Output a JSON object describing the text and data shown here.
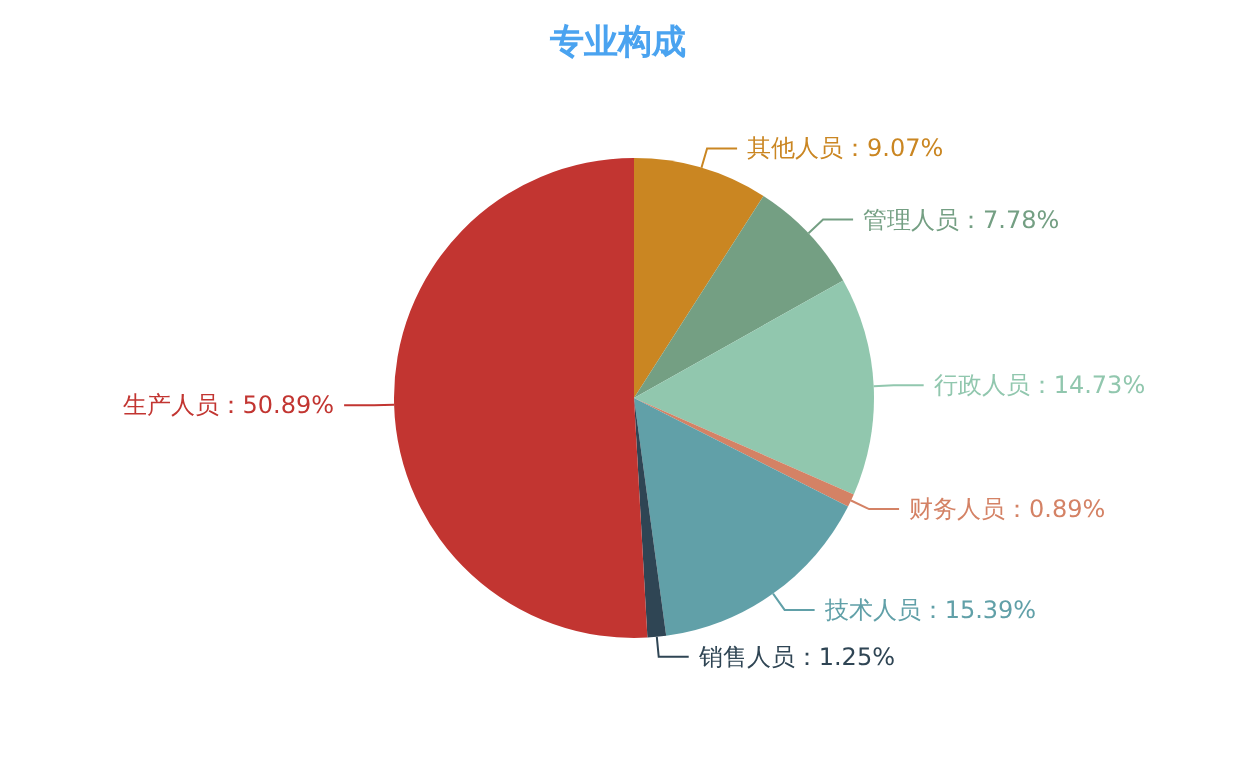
{
  "chart_data": {
    "type": "pie",
    "title": "专业构成",
    "categories": [
      "其他人员",
      "管理人员",
      "行政人员",
      "财务人员",
      "技术人员",
      "销售人员",
      "生产人员"
    ],
    "values": [
      9.07,
      7.78,
      14.73,
      0.89,
      15.39,
      1.25,
      50.89
    ],
    "colors": [
      "#ca8622",
      "#749f83",
      "#91c7ae",
      "#d48265",
      "#61a0a8",
      "#2f4554",
      "#c23531"
    ],
    "value_labels": [
      "：9.07%",
      "：7.78%",
      "：14.73%",
      "：0.89%",
      "：15.39%",
      "：1.25%",
      "：50.89%"
    ],
    "legend": false
  }
}
